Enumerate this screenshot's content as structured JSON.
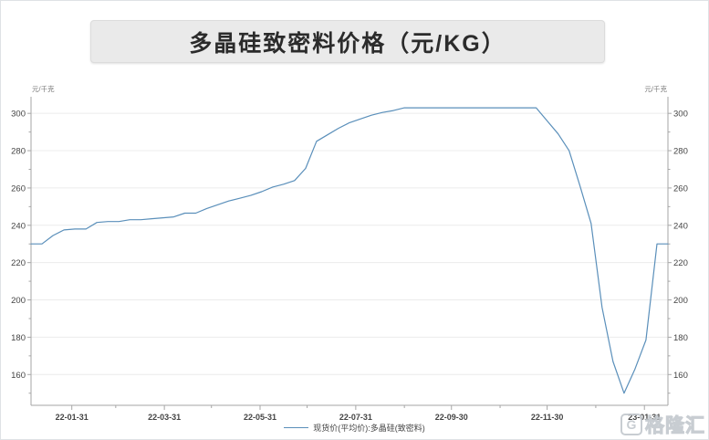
{
  "title": {
    "text": "多晶硅致密料价格（元/KG）"
  },
  "watermark": {
    "icon_letter": "G",
    "text": "格隆汇"
  },
  "colors": {
    "line": "#5a8fba",
    "grid": "#ececec",
    "axis": "#a6a6a6",
    "tick_label": "#444444",
    "unit_label": "#777777",
    "title_bg": "#eaeaea",
    "title_text": "#2b2b2b",
    "watermark": "#c3c8ce"
  },
  "chart_data": {
    "type": "line",
    "title": "多晶硅致密料价格（元/KG）",
    "unit_label": "元/千克",
    "grid": "horizontal-only",
    "legend_position": "bottom-center",
    "y_axis": {
      "min": 143,
      "max": 309,
      "major_ticks": [
        160,
        180,
        200,
        220,
        240,
        260,
        280,
        300
      ],
      "minor_ticks": [
        150,
        170,
        190,
        210,
        230,
        250,
        270,
        290
      ],
      "mirrored_right": true
    },
    "x_axis": {
      "total_days": 406,
      "ticks": [
        {
          "label": "22-01-31",
          "day": 26,
          "major": true
        },
        {
          "label": "",
          "day": 54,
          "major": false
        },
        {
          "label": "22-03-31",
          "day": 85,
          "major": true
        },
        {
          "label": "",
          "day": 115,
          "major": false
        },
        {
          "label": "22-05-31",
          "day": 146,
          "major": true
        },
        {
          "label": "",
          "day": 176,
          "major": false
        },
        {
          "label": "22-07-31",
          "day": 207,
          "major": true
        },
        {
          "label": "",
          "day": 238,
          "major": false
        },
        {
          "label": "22-09-30",
          "day": 268,
          "major": true
        },
        {
          "label": "",
          "day": 299,
          "major": false
        },
        {
          "label": "22-11-30",
          "day": 329,
          "major": true
        },
        {
          "label": "",
          "day": 360,
          "major": false
        },
        {
          "label": "23-01-31",
          "day": 391,
          "major": true
        }
      ]
    },
    "series": [
      {
        "name": "现货价(平均价):多晶硅(致密料)",
        "color": "#5a8fba",
        "start_date": "2022-01-05",
        "interval": "weekly",
        "values": [
          230,
          230,
          234.5,
          237.5,
          238,
          238,
          241.5,
          242,
          242,
          243,
          243,
          243.5,
          244,
          244.5,
          246.5,
          246.5,
          249,
          251,
          253,
          254.5,
          256,
          258,
          260.5,
          262,
          264,
          270.5,
          285,
          288.5,
          292,
          295,
          297,
          299,
          300.5,
          301.5,
          303,
          303,
          303,
          303,
          303,
          303,
          303,
          303,
          303,
          303,
          303,
          303,
          303,
          296,
          289,
          280,
          261,
          241,
          196,
          167,
          150,
          163,
          178.5,
          230,
          230
        ]
      }
    ]
  }
}
